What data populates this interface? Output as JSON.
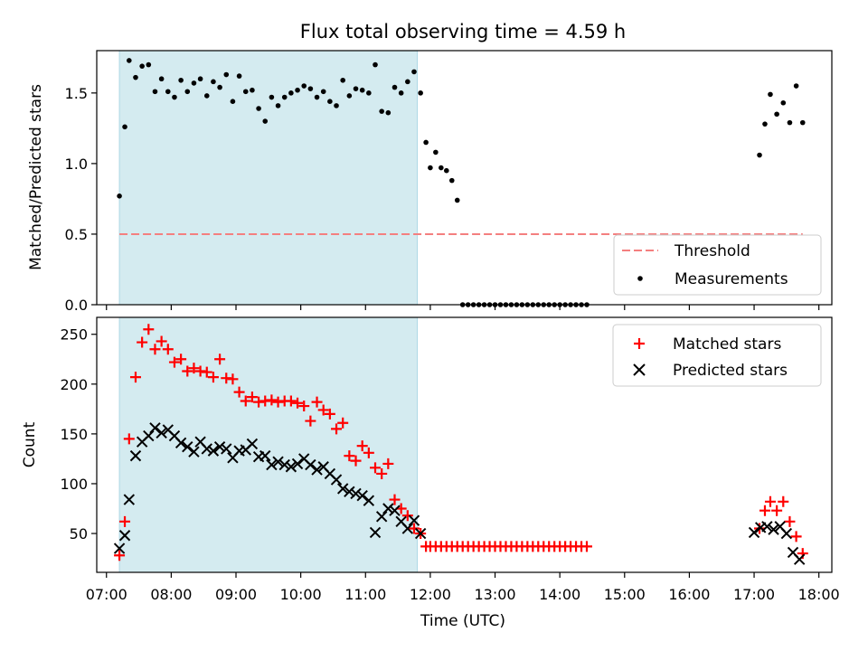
{
  "chart_data": {
    "type": "scatter",
    "title": "Flux total observing time = 4.59 h",
    "xlabel": "Time (UTC)",
    "xlim_hours": [
      6.85,
      18.2
    ],
    "x_ticks": [
      "07:00",
      "08:00",
      "09:00",
      "10:00",
      "11:00",
      "12:00",
      "13:00",
      "14:00",
      "15:00",
      "16:00",
      "17:00",
      "18:00"
    ],
    "shaded_interval": [
      "07:12",
      "11:48"
    ],
    "colors": {
      "shade": "#d4ebf0",
      "threshold": "#f47f7f",
      "matched": "#ff0000",
      "predicted": "#000000",
      "measurements": "#000000"
    },
    "panels": [
      {
        "ylabel": "Matched/Predicted stars",
        "ylim": [
          0,
          1.8
        ],
        "yticks": [
          "0.0",
          "0.5",
          "1.0",
          "1.5"
        ],
        "legend_position": "lower-right",
        "threshold": {
          "name": "Threshold",
          "value": 0.5
        },
        "series": [
          {
            "name": "Measurements",
            "x": [
              "07:12",
              "07:17",
              "07:21",
              "07:27",
              "07:33",
              "07:39",
              "07:45",
              "07:51",
              "07:57",
              "08:03",
              "08:09",
              "08:15",
              "08:21",
              "08:27",
              "08:33",
              "08:39",
              "08:45",
              "08:51",
              "08:57",
              "09:03",
              "09:09",
              "09:15",
              "09:21",
              "09:27",
              "09:33",
              "09:39",
              "09:45",
              "09:51",
              "09:57",
              "10:03",
              "10:09",
              "10:15",
              "10:21",
              "10:27",
              "10:33",
              "10:39",
              "10:45",
              "10:51",
              "10:57",
              "11:03",
              "11:09",
              "11:15",
              "11:21",
              "11:27",
              "11:33",
              "11:39",
              "11:45",
              "11:51",
              "11:56",
              "12:00",
              "12:05",
              "12:10",
              "12:15",
              "12:20",
              "12:25",
              "12:30",
              "12:35",
              "12:40",
              "12:45",
              "12:50",
              "12:55",
              "13:00",
              "13:05",
              "13:10",
              "13:15",
              "13:20",
              "13:25",
              "13:30",
              "13:35",
              "13:40",
              "13:45",
              "13:50",
              "13:55",
              "14:00",
              "14:05",
              "14:10",
              "14:15",
              "14:20",
              "14:25",
              "17:05",
              "17:10",
              "17:15",
              "17:21",
              "17:27",
              "17:33",
              "17:39",
              "17:45"
            ],
            "y": [
              0.77,
              1.26,
              1.73,
              1.61,
              1.69,
              1.7,
              1.51,
              1.6,
              1.51,
              1.47,
              1.59,
              1.51,
              1.57,
              1.6,
              1.48,
              1.58,
              1.54,
              1.63,
              1.44,
              1.62,
              1.51,
              1.52,
              1.39,
              1.3,
              1.47,
              1.41,
              1.47,
              1.5,
              1.52,
              1.55,
              1.53,
              1.47,
              1.51,
              1.44,
              1.41,
              1.59,
              1.48,
              1.53,
              1.52,
              1.5,
              1.7,
              1.37,
              1.36,
              1.54,
              1.5,
              1.58,
              1.65,
              1.5,
              1.15,
              0.97,
              1.08,
              0.97,
              0.95,
              0.88,
              0.74,
              0,
              0,
              0,
              0,
              0,
              0,
              0,
              0,
              0,
              0,
              0,
              0,
              0,
              0,
              0,
              0,
              0,
              0,
              0,
              0,
              0,
              0,
              0,
              0,
              1.06,
              1.28,
              1.49,
              1.35,
              1.43,
              1.29,
              1.55,
              1.29
            ]
          }
        ]
      },
      {
        "ylabel": "Count",
        "ylim": [
          11,
          267
        ],
        "yticks": [
          "50",
          "100",
          "150",
          "200",
          "250"
        ],
        "legend_position": "upper-right",
        "series": [
          {
            "name": "Matched stars",
            "marker": "plus",
            "x": [
              "07:12",
              "07:17",
              "07:21",
              "07:27",
              "07:33",
              "07:39",
              "07:45",
              "07:51",
              "07:57",
              "08:03",
              "08:09",
              "08:15",
              "08:21",
              "08:27",
              "08:33",
              "08:39",
              "08:45",
              "08:51",
              "08:57",
              "09:03",
              "09:09",
              "09:15",
              "09:21",
              "09:27",
              "09:33",
              "09:39",
              "09:45",
              "09:51",
              "09:57",
              "10:03",
              "10:09",
              "10:15",
              "10:21",
              "10:27",
              "10:33",
              "10:39",
              "10:45",
              "10:51",
              "10:57",
              "11:03",
              "11:09",
              "11:15",
              "11:21",
              "11:27",
              "11:33",
              "11:39",
              "11:45",
              "11:51",
              "11:56",
              "12:00",
              "12:05",
              "12:10",
              "12:15",
              "12:20",
              "12:25",
              "12:30",
              "12:35",
              "12:40",
              "12:45",
              "12:50",
              "12:55",
              "13:00",
              "13:05",
              "13:10",
              "13:15",
              "13:20",
              "13:25",
              "13:30",
              "13:35",
              "13:40",
              "13:45",
              "13:50",
              "13:55",
              "14:00",
              "14:05",
              "14:10",
              "14:15",
              "14:20",
              "14:25",
              "17:05",
              "17:10",
              "17:15",
              "17:21",
              "17:27",
              "17:33",
              "17:39",
              "17:45"
            ],
            "y": [
              28,
              62,
              145,
              207,
              242,
              255,
              235,
              243,
              235,
              222,
              225,
              213,
              216,
              213,
              212,
              207,
              225,
              206,
              205,
              192,
              183,
              187,
              182,
              183,
              184,
              182,
              183,
              183,
              181,
              178,
              163,
              182,
              174,
              170,
              155,
              161,
              128,
              123,
              138,
              131,
              116,
              110,
              120,
              84,
              75,
              68,
              55,
              50,
              37,
              37,
              37,
              37,
              37,
              37,
              37,
              37,
              37,
              37,
              37,
              37,
              37,
              37,
              37,
              37,
              37,
              37,
              37,
              37,
              37,
              37,
              37,
              37,
              37,
              37,
              37,
              37,
              37,
              37,
              37,
              55,
              73,
              82,
              73,
              82,
              62,
              47,
              30
            ]
          },
          {
            "name": "Predicted stars",
            "marker": "x",
            "x": [
              "07:12",
              "07:17",
              "07:21",
              "07:27",
              "07:33",
              "07:39",
              "07:45",
              "07:51",
              "07:57",
              "08:03",
              "08:09",
              "08:15",
              "08:21",
              "08:27",
              "08:33",
              "08:39",
              "08:45",
              "08:51",
              "08:57",
              "09:03",
              "09:09",
              "09:15",
              "09:21",
              "09:27",
              "09:33",
              "09:39",
              "09:45",
              "09:51",
              "09:57",
              "10:03",
              "10:09",
              "10:15",
              "10:21",
              "10:27",
              "10:33",
              "10:39",
              "10:45",
              "10:51",
              "10:57",
              "11:03",
              "11:09",
              "11:15",
              "11:21",
              "11:27",
              "11:33",
              "11:39",
              "11:45",
              "11:51",
              "17:00",
              "17:06",
              "17:12",
              "17:18",
              "17:24",
              "17:30",
              "17:36",
              "17:42"
            ],
            "y": [
              35,
              48,
              84,
              128,
              142,
              148,
              156,
              151,
              154,
              148,
              141,
              137,
              132,
              142,
              135,
              133,
              137,
              135,
              126,
              133,
              134,
              140,
              127,
              128,
              119,
              122,
              119,
              117,
              120,
              125,
              119,
              114,
              117,
              110,
              104,
              95,
              92,
              90,
              88,
              83,
              51,
              67,
              75,
              73,
              62,
              55,
              63,
              50,
              51,
              56,
              57,
              54,
              57,
              50,
              31,
              24
            ]
          }
        ]
      }
    ]
  }
}
